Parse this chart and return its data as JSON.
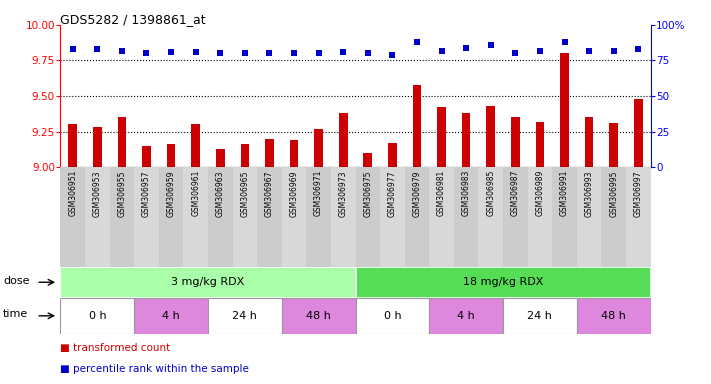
{
  "title": "GDS5282 / 1398861_at",
  "samples": [
    "GSM306951",
    "GSM306953",
    "GSM306955",
    "GSM306957",
    "GSM306959",
    "GSM306961",
    "GSM306963",
    "GSM306965",
    "GSM306967",
    "GSM306969",
    "GSM306971",
    "GSM306973",
    "GSM306975",
    "GSM306977",
    "GSM306979",
    "GSM306981",
    "GSM306983",
    "GSM306985",
    "GSM306987",
    "GSM306989",
    "GSM306991",
    "GSM306993",
    "GSM306995",
    "GSM306997"
  ],
  "bar_values": [
    9.3,
    9.28,
    9.35,
    9.15,
    9.16,
    9.3,
    9.13,
    9.16,
    9.2,
    9.19,
    9.27,
    9.38,
    9.1,
    9.17,
    9.58,
    9.42,
    9.38,
    9.43,
    9.35,
    9.32,
    9.8,
    9.35,
    9.31,
    9.48
  ],
  "dot_values": [
    83,
    83,
    82,
    80,
    81,
    81,
    80,
    80,
    80,
    80,
    80,
    81,
    80,
    79,
    88,
    82,
    84,
    86,
    80,
    82,
    88,
    82,
    82,
    83
  ],
  "bar_color": "#cc0000",
  "dot_color": "#0000cc",
  "ylim_left": [
    9.0,
    10.0
  ],
  "ylim_right": [
    0,
    100
  ],
  "yticks_left": [
    9.0,
    9.25,
    9.5,
    9.75,
    10.0
  ],
  "yticks_right": [
    0,
    25,
    50,
    75,
    100
  ],
  "hlines": [
    9.25,
    9.5,
    9.75
  ],
  "dose_groups": [
    {
      "label": "3 mg/kg RDX",
      "start": 0,
      "end": 12,
      "color": "#aaffaa"
    },
    {
      "label": "18 mg/kg RDX",
      "start": 12,
      "end": 24,
      "color": "#55dd55"
    }
  ],
  "time_groups": [
    {
      "label": "0 h",
      "start": 0,
      "end": 3,
      "color": "#ffffff"
    },
    {
      "label": "4 h",
      "start": 3,
      "end": 6,
      "color": "#dd88dd"
    },
    {
      "label": "24 h",
      "start": 6,
      "end": 9,
      "color": "#ffffff"
    },
    {
      "label": "48 h",
      "start": 9,
      "end": 12,
      "color": "#dd88dd"
    },
    {
      "label": "0 h",
      "start": 12,
      "end": 15,
      "color": "#ffffff"
    },
    {
      "label": "4 h",
      "start": 15,
      "end": 18,
      "color": "#dd88dd"
    },
    {
      "label": "24 h",
      "start": 18,
      "end": 21,
      "color": "#ffffff"
    },
    {
      "label": "48 h",
      "start": 21,
      "end": 24,
      "color": "#dd88dd"
    }
  ],
  "legend_items": [
    {
      "label": "transformed count",
      "color": "#cc0000"
    },
    {
      "label": "percentile rank within the sample",
      "color": "#0000cc"
    }
  ],
  "col_colors": [
    "#cccccc",
    "#d8d8d8"
  ],
  "background_color": "#ffffff"
}
